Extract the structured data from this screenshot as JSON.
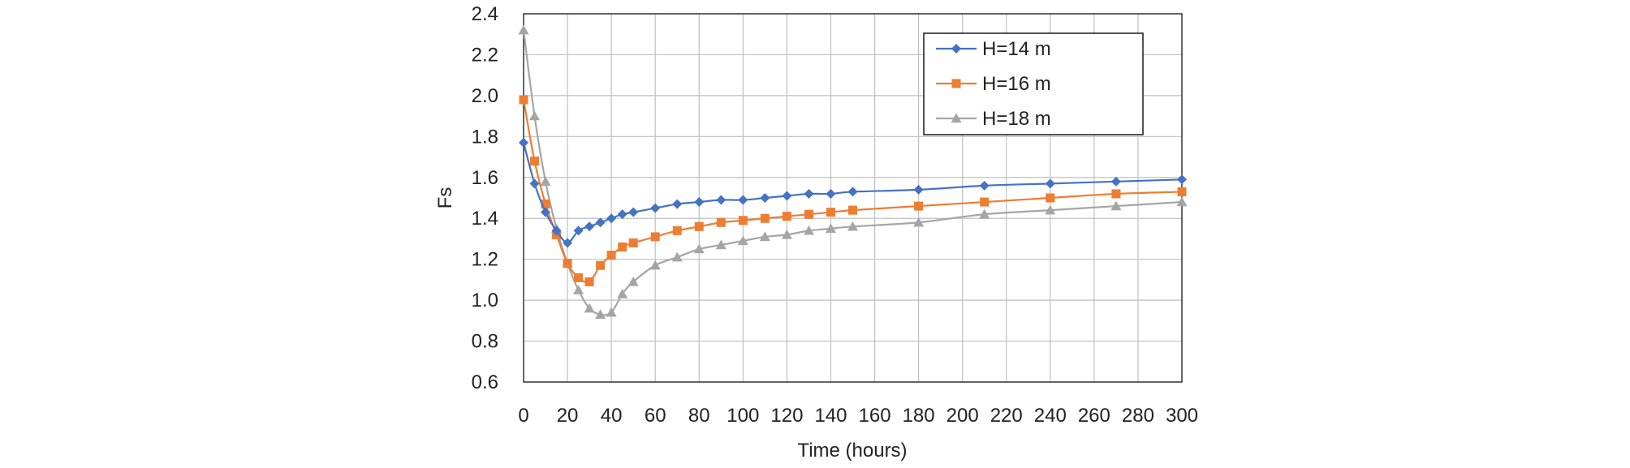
{
  "chart_data": {
    "type": "line",
    "title": "",
    "xlabel": "Time (hours)",
    "ylabel": "Fs",
    "xlim": [
      0,
      300
    ],
    "ylim": [
      0.6,
      2.4
    ],
    "x_ticks": [
      0,
      20,
      40,
      60,
      80,
      100,
      120,
      140,
      160,
      180,
      200,
      220,
      240,
      260,
      280,
      300
    ],
    "y_ticks": [
      "0.6",
      "0.8",
      "1.0",
      "1.2",
      "1.4",
      "1.6",
      "1.8",
      "2.0",
      "2.2",
      "2.4"
    ],
    "grid": true,
    "legend_position": "top-right",
    "series": [
      {
        "name": "H=14 m",
        "color": "#4472C4",
        "marker": "diamond",
        "points": [
          [
            0,
            1.77
          ],
          [
            5,
            1.57
          ],
          [
            10,
            1.43
          ],
          [
            15,
            1.34
          ],
          [
            20,
            1.28
          ],
          [
            25,
            1.34
          ],
          [
            30,
            1.36
          ],
          [
            35,
            1.38
          ],
          [
            40,
            1.4
          ],
          [
            45,
            1.42
          ],
          [
            50,
            1.43
          ],
          [
            60,
            1.45
          ],
          [
            70,
            1.47
          ],
          [
            80,
            1.48
          ],
          [
            90,
            1.49
          ],
          [
            100,
            1.49
          ],
          [
            110,
            1.5
          ],
          [
            120,
            1.51
          ],
          [
            130,
            1.52
          ],
          [
            140,
            1.52
          ],
          [
            150,
            1.53
          ],
          [
            180,
            1.54
          ],
          [
            210,
            1.56
          ],
          [
            240,
            1.57
          ],
          [
            270,
            1.58
          ],
          [
            300,
            1.59
          ]
        ]
      },
      {
        "name": "H=16 m",
        "color": "#ED7D31",
        "marker": "square",
        "points": [
          [
            0,
            1.98
          ],
          [
            5,
            1.68
          ],
          [
            10,
            1.47
          ],
          [
            15,
            1.32
          ],
          [
            20,
            1.18
          ],
          [
            25,
            1.11
          ],
          [
            30,
            1.09
          ],
          [
            35,
            1.17
          ],
          [
            40,
            1.22
          ],
          [
            45,
            1.26
          ],
          [
            50,
            1.28
          ],
          [
            60,
            1.31
          ],
          [
            70,
            1.34
          ],
          [
            80,
            1.36
          ],
          [
            90,
            1.38
          ],
          [
            100,
            1.39
          ],
          [
            110,
            1.4
          ],
          [
            120,
            1.41
          ],
          [
            130,
            1.42
          ],
          [
            140,
            1.43
          ],
          [
            150,
            1.44
          ],
          [
            180,
            1.46
          ],
          [
            210,
            1.48
          ],
          [
            240,
            1.5
          ],
          [
            270,
            1.52
          ],
          [
            300,
            1.53
          ]
        ]
      },
      {
        "name": "H=18 m",
        "color": "#A5A5A5",
        "marker": "triangle",
        "points": [
          [
            0,
            2.32
          ],
          [
            5,
            1.9
          ],
          [
            10,
            1.58
          ],
          [
            15,
            1.35
          ],
          [
            20,
            1.18
          ],
          [
            25,
            1.05
          ],
          [
            30,
            0.96
          ],
          [
            35,
            0.93
          ],
          [
            40,
            0.94
          ],
          [
            45,
            1.03
          ],
          [
            50,
            1.09
          ],
          [
            60,
            1.17
          ],
          [
            70,
            1.21
          ],
          [
            80,
            1.25
          ],
          [
            90,
            1.27
          ],
          [
            100,
            1.29
          ],
          [
            110,
            1.31
          ],
          [
            120,
            1.32
          ],
          [
            130,
            1.34
          ],
          [
            140,
            1.35
          ],
          [
            150,
            1.36
          ],
          [
            180,
            1.38
          ],
          [
            210,
            1.42
          ],
          [
            240,
            1.44
          ],
          [
            270,
            1.46
          ],
          [
            300,
            1.48
          ]
        ]
      }
    ]
  }
}
